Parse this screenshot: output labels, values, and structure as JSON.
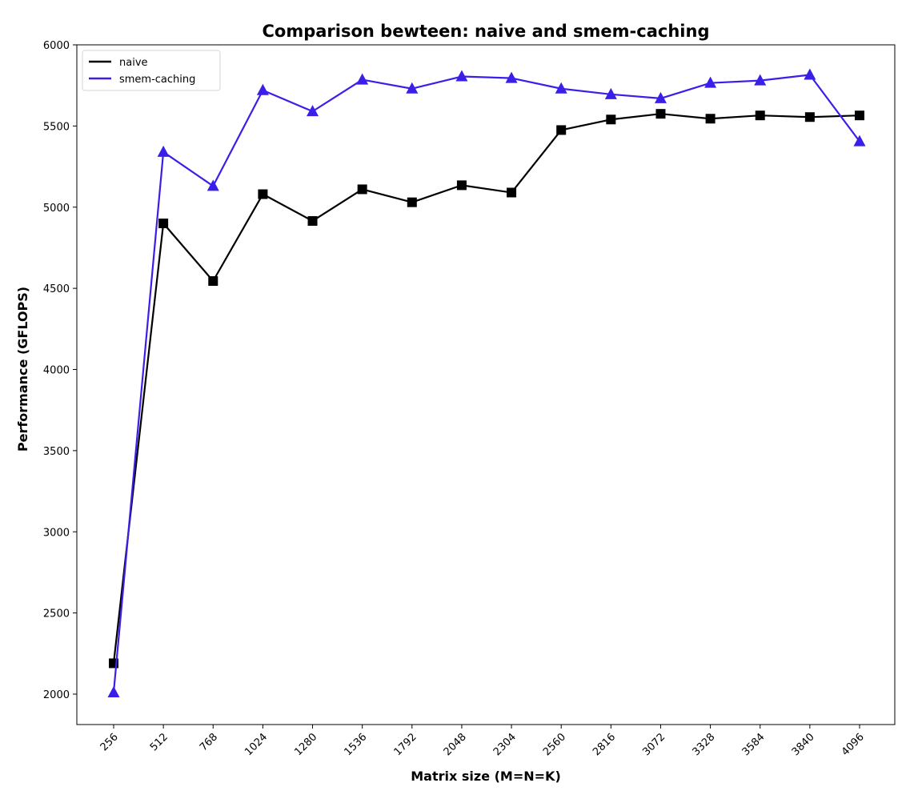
{
  "chart_data": {
    "type": "line",
    "title": "Comparison bewteen: naive and smem-caching",
    "xlabel": "Matrix size (M=N=K)",
    "ylabel": "Performance (GFLOPS)",
    "categories": [
      "256",
      "512",
      "768",
      "1024",
      "1280",
      "1536",
      "1792",
      "2048",
      "2304",
      "2560",
      "2816",
      "3072",
      "3328",
      "3584",
      "3840",
      "4096"
    ],
    "ylim": [
      1810,
      6000
    ],
    "yticks": [
      2000,
      2500,
      3000,
      3500,
      4000,
      4500,
      5000,
      5500,
      6000
    ],
    "grid": false,
    "legend_position": "upper left",
    "series": [
      {
        "name": "naive",
        "color": "#000000",
        "marker": "square",
        "values": [
          2190,
          4900,
          4545,
          5080,
          4915,
          5110,
          5030,
          5135,
          5090,
          5475,
          5540,
          5575,
          5545,
          5565,
          5555,
          5565
        ]
      },
      {
        "name": "smem-caching",
        "color": "#3a1fe8",
        "marker": "triangle",
        "values": [
          2010,
          5340,
          5130,
          5720,
          5590,
          5785,
          5730,
          5805,
          5795,
          5730,
          5695,
          5670,
          5765,
          5780,
          5815,
          5405
        ]
      }
    ]
  }
}
